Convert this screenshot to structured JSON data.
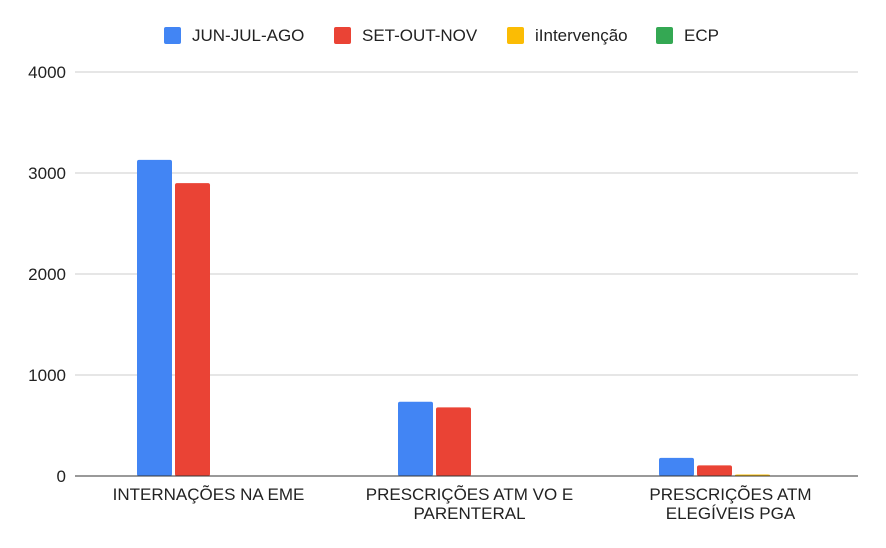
{
  "chart_data": {
    "type": "bar",
    "categories": [
      [
        "INTERNAÇÕES NA EME"
      ],
      [
        "PRESCRIÇÕES ATM VO E",
        "PARENTERAL"
      ],
      [
        "PRESCRIÇÕES ATM",
        "ELEGÍVEIS PGA"
      ]
    ],
    "series": [
      {
        "name": "JUN-JUL-AGO",
        "color": "#4285f4",
        "values": [
          3130,
          735,
          180
        ]
      },
      {
        "name": "SET-OUT-NOV",
        "color": "#ea4335",
        "values": [
          2900,
          680,
          105
        ]
      },
      {
        "name": "iIntervenção",
        "color": "#fbbc04",
        "values": [
          0,
          0,
          15
        ]
      },
      {
        "name": "ECP",
        "color": "#34a853",
        "values": [
          0,
          0,
          0
        ]
      }
    ],
    "ylim": [
      0,
      4000
    ],
    "yticks": [
      0,
      1000,
      2000,
      3000,
      4000
    ],
    "grid": true,
    "legend_position": "top"
  }
}
